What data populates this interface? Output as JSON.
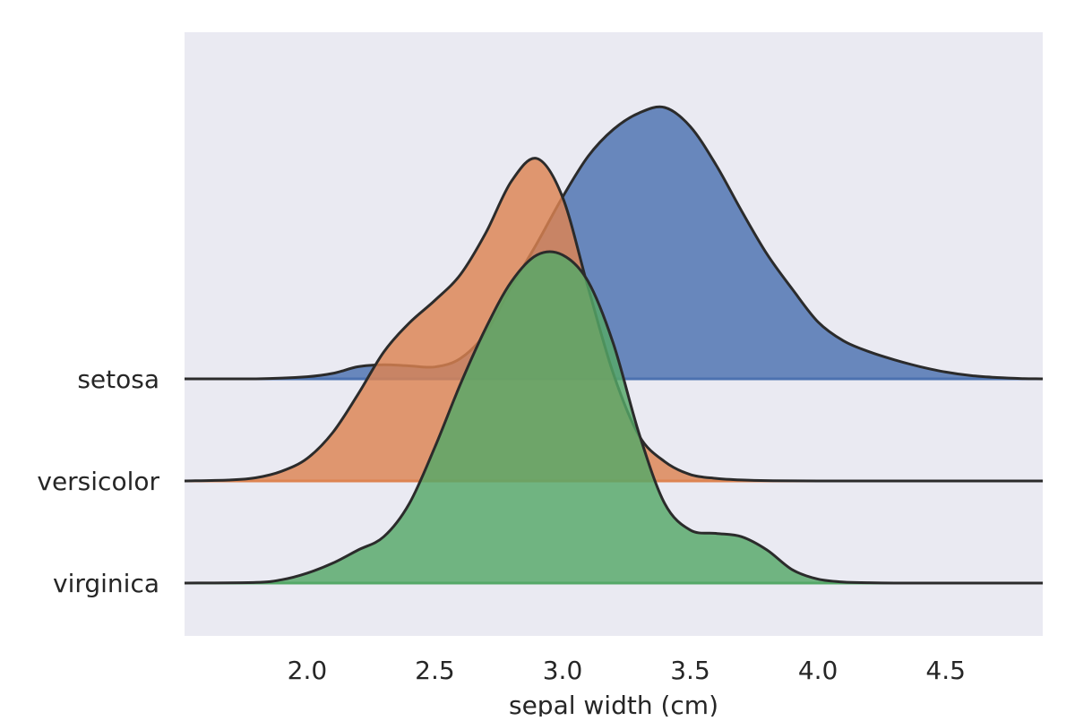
{
  "chart_data": {
    "type": "area",
    "xlabel": "sepal width (cm)",
    "ylabel": "",
    "xlim": [
      1.52,
      4.88
    ],
    "xticks": [
      "2.0",
      "2.5",
      "3.0",
      "3.5",
      "4.0",
      "4.5"
    ],
    "grid": false,
    "background": "#eaeaf2",
    "series": [
      {
        "name": "setosa",
        "color": "#4c72b0",
        "x": [
          1.52,
          1.8,
          2.0,
          2.1,
          2.2,
          2.3,
          2.4,
          2.5,
          2.6,
          2.7,
          2.8,
          2.9,
          3.0,
          3.1,
          3.2,
          3.3,
          3.4,
          3.5,
          3.6,
          3.7,
          3.8,
          3.9,
          4.0,
          4.1,
          4.2,
          4.3,
          4.4,
          4.5,
          4.6,
          4.7,
          4.8,
          4.88
        ],
        "density": [
          0.0,
          0.0,
          0.008,
          0.02,
          0.045,
          0.052,
          0.048,
          0.044,
          0.075,
          0.17,
          0.34,
          0.5,
          0.67,
          0.82,
          0.92,
          0.98,
          1.0,
          0.93,
          0.79,
          0.62,
          0.46,
          0.33,
          0.21,
          0.14,
          0.1,
          0.07,
          0.045,
          0.025,
          0.012,
          0.005,
          0.001,
          0.0
        ]
      },
      {
        "name": "versicolor",
        "color": "#dd8452",
        "x": [
          1.52,
          1.7,
          1.8,
          1.9,
          2.0,
          2.1,
          2.2,
          2.3,
          2.4,
          2.5,
          2.6,
          2.7,
          2.8,
          2.9,
          3.0,
          3.1,
          3.2,
          3.3,
          3.4,
          3.5,
          3.6,
          3.7,
          3.8,
          4.0,
          4.5,
          4.88
        ],
        "density": [
          0.0,
          0.003,
          0.01,
          0.03,
          0.07,
          0.15,
          0.27,
          0.4,
          0.49,
          0.56,
          0.64,
          0.77,
          0.93,
          1.0,
          0.88,
          0.6,
          0.33,
          0.14,
          0.06,
          0.02,
          0.008,
          0.003,
          0.001,
          0.0,
          0.0,
          0.0
        ]
      },
      {
        "name": "virginica",
        "color": "#55a868",
        "x": [
          1.52,
          1.8,
          1.9,
          2.0,
          2.1,
          2.2,
          2.3,
          2.4,
          2.5,
          2.6,
          2.7,
          2.8,
          2.9,
          3.0,
          3.1,
          3.2,
          3.3,
          3.4,
          3.5,
          3.6,
          3.7,
          3.8,
          3.9,
          4.0,
          4.1,
          4.2,
          4.3,
          4.5,
          4.88
        ],
        "density": [
          0.0,
          0.002,
          0.01,
          0.03,
          0.06,
          0.1,
          0.14,
          0.24,
          0.41,
          0.6,
          0.77,
          0.91,
          0.99,
          0.99,
          0.91,
          0.72,
          0.45,
          0.24,
          0.16,
          0.15,
          0.14,
          0.1,
          0.04,
          0.012,
          0.003,
          0.001,
          0.0,
          0.0,
          0.0
        ]
      }
    ]
  }
}
